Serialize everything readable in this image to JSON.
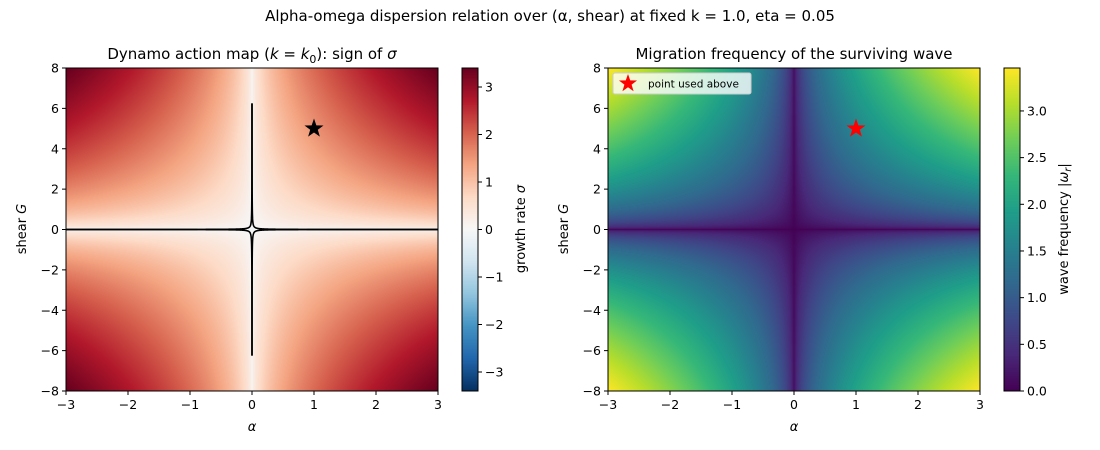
{
  "figure": {
    "suptitle": "Alpha-omega dispersion relation over (α, shear) at fixed k = 1.0, eta = 0.05"
  },
  "chart_data": [
    {
      "type": "heatmap",
      "title": "Dynamo action map (k = k₀): sign of σ",
      "title_parts": {
        "pre": "Dynamo action map (",
        "k": "k",
        "eq": " = ",
        "k0": "k",
        "sub0": "0",
        "post": "): sign of ",
        "sigma": "σ"
      },
      "xlabel": "α",
      "ylabel": "shear G",
      "ylabel_parts": {
        "word": "shear ",
        "sym": "G"
      },
      "xlim": [
        -3,
        3
      ],
      "ylim": [
        -8,
        8
      ],
      "x_ticks": [
        "−3",
        "−2",
        "−1",
        "0",
        "1",
        "2",
        "3"
      ],
      "y_ticks": [
        "−8",
        "−6",
        "−4",
        "−2",
        "0",
        "2",
        "4",
        "6",
        "8"
      ],
      "field": "growth rate sigma = sqrt(|alpha*G*k|/2) - eta*k^2",
      "colormap": "RdBu_r",
      "clim": [
        -3.4,
        3.4
      ],
      "contour_level": 0,
      "contour_color": "#000000",
      "colorbar": {
        "label": "growth rate σ",
        "label_parts": {
          "word": "growth rate ",
          "sym": "σ"
        },
        "ticks": [
          "−3",
          "−2",
          "−1",
          "0",
          "1",
          "2",
          "3"
        ],
        "tick_values": [
          -3,
          -2,
          -1,
          0,
          1,
          2,
          3
        ]
      },
      "marker": {
        "x": 1,
        "y": 5,
        "shape": "star",
        "color": "#000000"
      }
    },
    {
      "type": "heatmap",
      "title": "Migration frequency of the surviving wave",
      "xlabel": "α",
      "ylabel": "shear G",
      "ylabel_parts": {
        "word": "shear ",
        "sym": "G"
      },
      "xlim": [
        -3,
        3
      ],
      "ylim": [
        -8,
        8
      ],
      "x_ticks": [
        "−3",
        "−2",
        "−1",
        "0",
        "1",
        "2",
        "3"
      ],
      "y_ticks": [
        "−8",
        "−6",
        "−4",
        "−2",
        "0",
        "2",
        "4",
        "6",
        "8"
      ],
      "field": "wave frequency |omega_r| = sqrt(|alpha*G*k|/2)",
      "colormap": "viridis",
      "clim": [
        0,
        3.46
      ],
      "colorbar": {
        "label": "wave frequency |ωr|",
        "label_parts": {
          "word": "wave frequency |",
          "sym": "ω",
          "sub": "r",
          "end": "|"
        },
        "ticks": [
          "0.0",
          "0.5",
          "1.0",
          "1.5",
          "2.0",
          "2.5",
          "3.0"
        ],
        "tick_values": [
          0,
          0.5,
          1.0,
          1.5,
          2.0,
          2.5,
          3.0
        ]
      },
      "marker": {
        "x": 1,
        "y": 5,
        "shape": "star",
        "color": "#ff0000"
      },
      "legend": {
        "placement": "top-left",
        "entries": [
          "point used above"
        ]
      }
    }
  ],
  "params": {
    "k": 1.0,
    "eta": 0.05
  }
}
